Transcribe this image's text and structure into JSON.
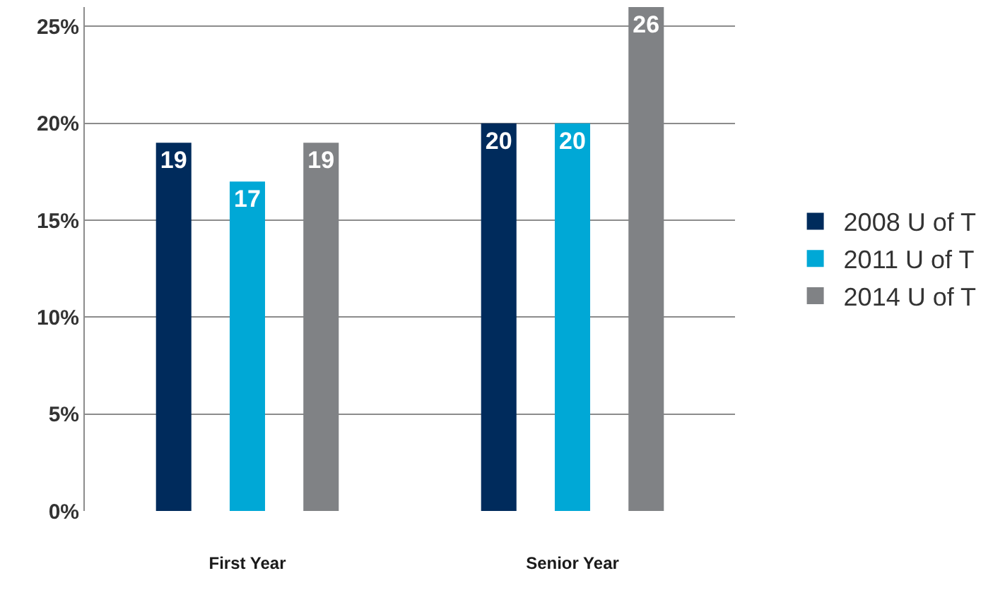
{
  "chart_data": {
    "type": "bar",
    "categories": [
      "First Year",
      "Senior Year"
    ],
    "series": [
      {
        "name": "2008 U of T",
        "color": "#002b5c",
        "values": [
          19,
          20
        ]
      },
      {
        "name": "2011 U of T",
        "color": "#00a8d6",
        "values": [
          17,
          20
        ]
      },
      {
        "name": "2014 U of T",
        "color": "#808285",
        "values": [
          19,
          26
        ]
      }
    ],
    "ylim": [
      0,
      26
    ],
    "yticks": [
      {
        "value": 0,
        "label": "0%"
      },
      {
        "value": 5,
        "label": "5%"
      },
      {
        "value": 10,
        "label": "10%"
      },
      {
        "value": 15,
        "label": "15%"
      },
      {
        "value": 20,
        "label": "20%"
      },
      {
        "value": 25,
        "label": "25%"
      }
    ],
    "grid": "y",
    "legend": "right",
    "data_labels": true
  }
}
